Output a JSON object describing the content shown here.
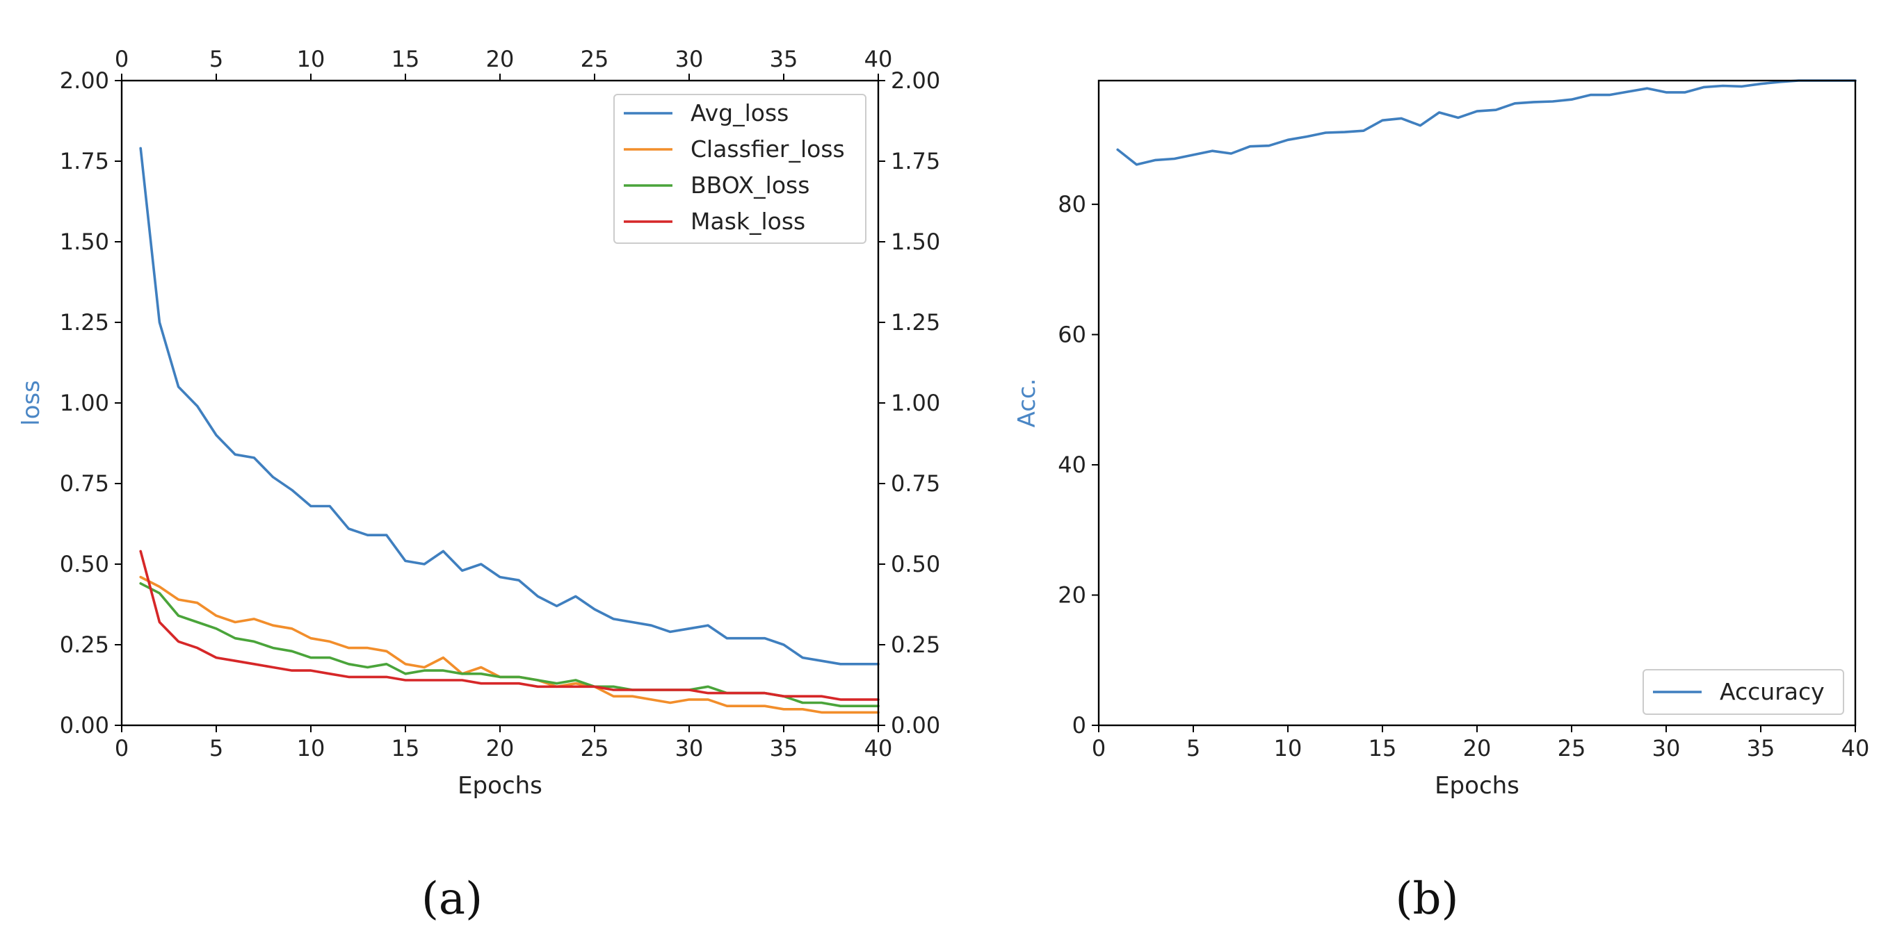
{
  "chart_data": [
    {
      "type": "line",
      "caption": "(a)",
      "xlabel": "Epochs",
      "ylabel": "loss",
      "ylabel_color": "#4a86c5",
      "xlim": [
        0,
        40
      ],
      "ylim": [
        0,
        2.0
      ],
      "x_ticks": [
        0,
        5,
        10,
        15,
        20,
        25,
        30,
        35,
        40
      ],
      "y_ticks": [
        "0.00",
        "0.25",
        "0.50",
        "0.75",
        "1.00",
        "1.25",
        "1.50",
        "1.75",
        "2.00"
      ],
      "top_axis_ticks": true,
      "right_axis_ticks": true,
      "grid": false,
      "legend_position": "top-right",
      "x": [
        1,
        2,
        3,
        4,
        5,
        6,
        7,
        8,
        9,
        10,
        11,
        12,
        13,
        14,
        15,
        16,
        17,
        18,
        19,
        20,
        21,
        22,
        23,
        24,
        25,
        26,
        27,
        28,
        29,
        30,
        31,
        32,
        33,
        34,
        35,
        36,
        37,
        38,
        39,
        40
      ],
      "series": [
        {
          "name": "Avg_loss",
          "color": "#3f7fbf",
          "values": [
            1.79,
            1.25,
            1.05,
            0.99,
            0.9,
            0.84,
            0.83,
            0.77,
            0.73,
            0.68,
            0.68,
            0.61,
            0.59,
            0.59,
            0.51,
            0.5,
            0.54,
            0.48,
            0.5,
            0.46,
            0.45,
            0.4,
            0.37,
            0.4,
            0.36,
            0.33,
            0.32,
            0.31,
            0.29,
            0.3,
            0.31,
            0.27,
            0.27,
            0.27,
            0.25,
            0.21,
            0.2,
            0.19,
            0.19,
            0.19
          ]
        },
        {
          "name": "Classfier_loss",
          "color": "#f28e2b",
          "values": [
            0.46,
            0.43,
            0.39,
            0.38,
            0.34,
            0.32,
            0.33,
            0.31,
            0.3,
            0.27,
            0.26,
            0.24,
            0.24,
            0.23,
            0.19,
            0.18,
            0.21,
            0.16,
            0.18,
            0.15,
            0.15,
            0.14,
            0.12,
            0.13,
            0.12,
            0.09,
            0.09,
            0.08,
            0.07,
            0.08,
            0.08,
            0.06,
            0.06,
            0.06,
            0.05,
            0.05,
            0.04,
            0.04,
            0.04,
            0.04
          ]
        },
        {
          "name": "BBOX_loss",
          "color": "#4aa43a",
          "values": [
            0.44,
            0.41,
            0.34,
            0.32,
            0.3,
            0.27,
            0.26,
            0.24,
            0.23,
            0.21,
            0.21,
            0.19,
            0.18,
            0.19,
            0.16,
            0.17,
            0.17,
            0.16,
            0.16,
            0.15,
            0.15,
            0.14,
            0.13,
            0.14,
            0.12,
            0.12,
            0.11,
            0.11,
            0.11,
            0.11,
            0.12,
            0.1,
            0.1,
            0.1,
            0.09,
            0.07,
            0.07,
            0.06,
            0.06,
            0.06
          ]
        },
        {
          "name": "Mask_loss",
          "color": "#d62728",
          "values": [
            0.54,
            0.32,
            0.26,
            0.24,
            0.21,
            0.2,
            0.19,
            0.18,
            0.17,
            0.17,
            0.16,
            0.15,
            0.15,
            0.15,
            0.14,
            0.14,
            0.14,
            0.14,
            0.13,
            0.13,
            0.13,
            0.12,
            0.12,
            0.12,
            0.12,
            0.11,
            0.11,
            0.11,
            0.11,
            0.11,
            0.1,
            0.1,
            0.1,
            0.1,
            0.09,
            0.09,
            0.09,
            0.08,
            0.08,
            0.08
          ]
        }
      ]
    },
    {
      "type": "line",
      "caption": "(b)",
      "xlabel": "Epochs",
      "ylabel": "Acc.",
      "ylabel_color": "#4a86c5",
      "xlim": [
        0,
        40
      ],
      "ylim": [
        0,
        99
      ],
      "x_ticks": [
        0,
        5,
        10,
        15,
        20,
        25,
        30,
        35,
        40
      ],
      "y_ticks": [
        "0",
        "20",
        "40",
        "60",
        "80"
      ],
      "grid": false,
      "legend_position": "bottom-right",
      "x": [
        1,
        2,
        3,
        4,
        5,
        6,
        7,
        8,
        9,
        10,
        11,
        12,
        13,
        14,
        15,
        16,
        17,
        18,
        19,
        20,
        21,
        22,
        23,
        24,
        25,
        26,
        27,
        28,
        29,
        30,
        31,
        32,
        33,
        34,
        35,
        36,
        37,
        38,
        39,
        40
      ],
      "series": [
        {
          "name": "Accuracy",
          "color": "#3f7fbf",
          "values": [
            88.4,
            86.1,
            86.8,
            87.0,
            87.6,
            88.2,
            87.8,
            88.9,
            89.0,
            89.9,
            90.4,
            91.0,
            91.1,
            91.3,
            92.9,
            93.2,
            92.1,
            94.1,
            93.3,
            94.3,
            94.5,
            95.5,
            95.7,
            95.8,
            96.1,
            96.8,
            96.8,
            97.3,
            97.8,
            97.2,
            97.2,
            98.0,
            98.2,
            98.1,
            98.5,
            98.8,
            99.0,
            99.0,
            99.0,
            99.0
          ]
        }
      ]
    }
  ]
}
